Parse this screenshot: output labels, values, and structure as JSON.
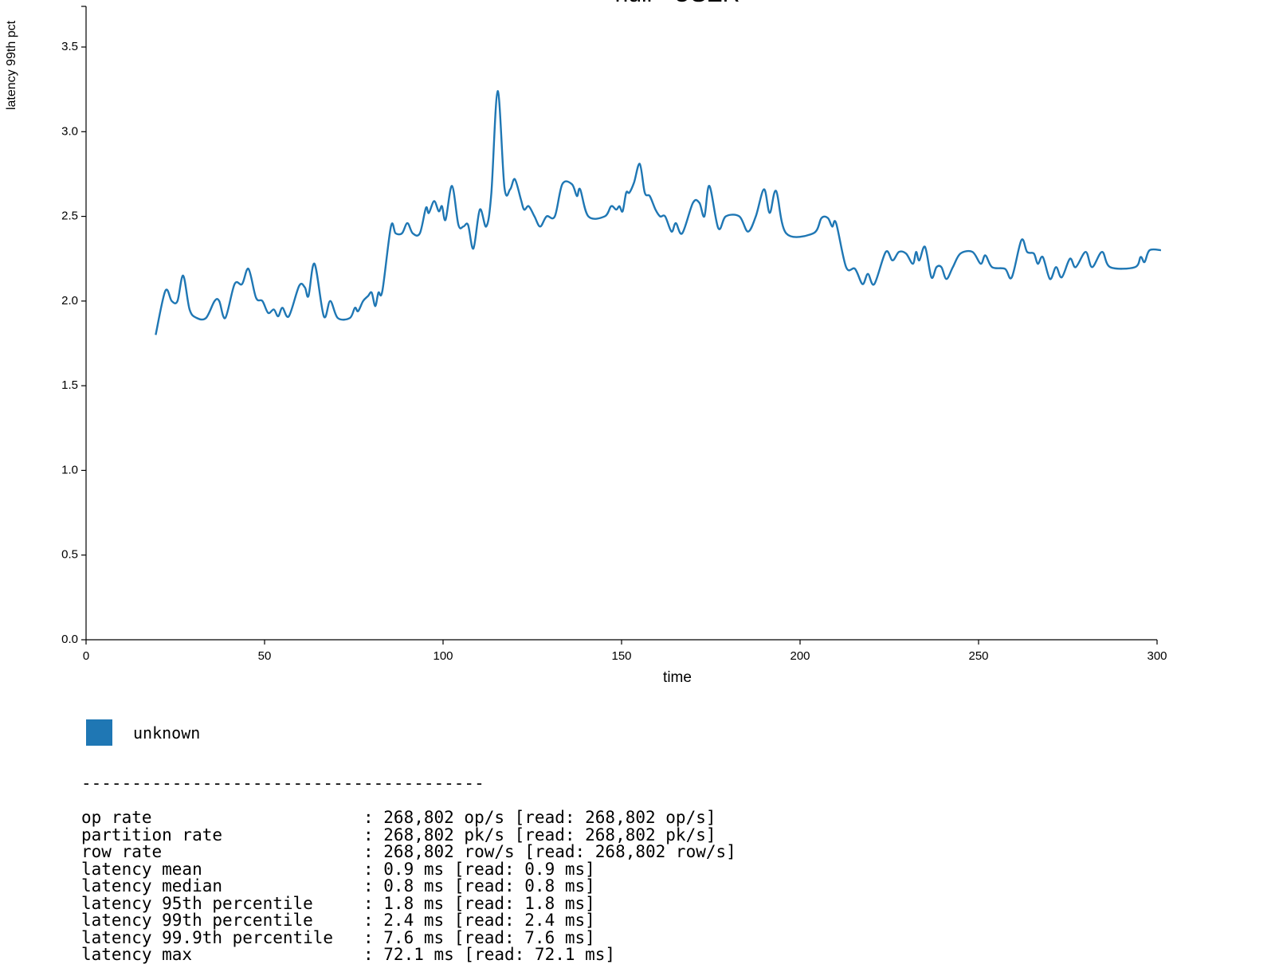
{
  "chart_data": {
    "type": "line",
    "title": "null - USER",
    "x_label": "time",
    "y_label": "latency 99th pct",
    "xlim": [
      0,
      300
    ],
    "xticks": [
      0,
      50,
      100,
      150,
      200,
      250,
      300
    ],
    "ylim": [
      0,
      3.74
    ],
    "yticks": [
      {
        "value": 0,
        "label": "0.0"
      },
      0.5,
      {
        "value": 1,
        "label": "1.0"
      },
      1.5,
      {
        "value": 2,
        "label": "2.0"
      },
      2.5,
      {
        "value": 3,
        "label": "3.0"
      },
      3.5
    ],
    "x": [
      19.5,
      22.2,
      24,
      25.6,
      27.2,
      29,
      31,
      33.6,
      36,
      37.3,
      39,
      41.6,
      43.7,
      45.5,
      47.6,
      49.4,
      51,
      52.6,
      53.8,
      55,
      56.8,
      59.7,
      61.3,
      62.3,
      64,
      66.6,
      68.4,
      70.5,
      73.9,
      75.3,
      76.2,
      77.6,
      79,
      80,
      81,
      81.9,
      83,
      85.4,
      86.7,
      88.5,
      90,
      91.5,
      93.5,
      95.2,
      96,
      97.5,
      98.8,
      99.7,
      100.7,
      102.5,
      104.3,
      105.7,
      107,
      108.5,
      110.3,
      112.1,
      113.5,
      115.3,
      117.2,
      118.8,
      120.1,
      121.8,
      122.7,
      124,
      125.6,
      127.2,
      129,
      131.3,
      133.4,
      136.1,
      137.5,
      138.4,
      140.7,
      145.3,
      147.1,
      148.5,
      149.4,
      150.3,
      151.3,
      152.2,
      153.5,
      155.1,
      156.5,
      157.9,
      159.5,
      160.8,
      162.2,
      164,
      165.2,
      167,
      170,
      171.8,
      173.2,
      174.6,
      177.1,
      179.2,
      183,
      185.4,
      187.6,
      189.9,
      191.5,
      193.3,
      196.1,
      203.7,
      206,
      207.8,
      209,
      210.1,
      212.9,
      215.4,
      217.5,
      219,
      220.8,
      224,
      225.9,
      227.7,
      229.7,
      231.6,
      232.5,
      233.4,
      235,
      236.8,
      238.2,
      239.6,
      241,
      242.8,
      244.9,
      248.3,
      250.6,
      251.9,
      253.8,
      257.4,
      259.3,
      262,
      263.6,
      265.5,
      266.6,
      268,
      270,
      271.7,
      273.3,
      275.6,
      277.2,
      280,
      281.8,
      284.6,
      286.9,
      293.8,
      295.4,
      296.5,
      297.9,
      301.1
    ],
    "series": [
      {
        "name": "unknown",
        "color": "#1f77b4",
        "values": [
          1.8,
          2.06,
          2.0,
          2.0,
          2.15,
          1.95,
          1.9,
          1.9,
          2.0,
          2.0,
          1.9,
          2.1,
          2.1,
          2.19,
          2.02,
          2.0,
          1.93,
          1.95,
          1.91,
          1.96,
          1.91,
          2.09,
          2.08,
          2.03,
          2.22,
          1.91,
          2.0,
          1.9,
          1.9,
          1.96,
          1.94,
          2.0,
          2.03,
          2.05,
          1.97,
          2.05,
          2.06,
          2.44,
          2.4,
          2.4,
          2.46,
          2.4,
          2.4,
          2.55,
          2.52,
          2.59,
          2.53,
          2.56,
          2.48,
          2.68,
          2.45,
          2.44,
          2.45,
          2.31,
          2.54,
          2.44,
          2.63,
          3.24,
          2.67,
          2.66,
          2.72,
          2.6,
          2.54,
          2.56,
          2.5,
          2.44,
          2.5,
          2.5,
          2.69,
          2.69,
          2.62,
          2.66,
          2.5,
          2.5,
          2.56,
          2.54,
          2.56,
          2.53,
          2.64,
          2.64,
          2.7,
          2.81,
          2.64,
          2.62,
          2.54,
          2.5,
          2.5,
          2.41,
          2.46,
          2.4,
          2.58,
          2.58,
          2.5,
          2.68,
          2.43,
          2.5,
          2.5,
          2.41,
          2.5,
          2.66,
          2.52,
          2.65,
          2.4,
          2.4,
          2.49,
          2.49,
          2.44,
          2.46,
          2.2,
          2.19,
          2.1,
          2.16,
          2.1,
          2.29,
          2.24,
          2.29,
          2.28,
          2.22,
          2.29,
          2.24,
          2.32,
          2.14,
          2.2,
          2.2,
          2.13,
          2.2,
          2.28,
          2.29,
          2.22,
          2.27,
          2.2,
          2.19,
          2.14,
          2.36,
          2.29,
          2.28,
          2.22,
          2.26,
          2.13,
          2.2,
          2.14,
          2.25,
          2.2,
          2.29,
          2.2,
          2.29,
          2.2,
          2.2,
          2.26,
          2.23,
          2.3,
          2.3
        ]
      }
    ]
  },
  "stats": {
    "separator": "----------------------------------------",
    "rows": [
      {
        "label": "op rate",
        "value": ": 268,802 op/s [read: 268,802 op/s]"
      },
      {
        "label": "partition rate",
        "value": ": 268,802 pk/s [read: 268,802 pk/s]"
      },
      {
        "label": "row rate",
        "value": ": 268,802 row/s [read: 268,802 row/s]"
      },
      {
        "label": "latency mean",
        "value": ": 0.9 ms [read: 0.9 ms]"
      },
      {
        "label": "latency median",
        "value": ": 0.8 ms [read: 0.8 ms]"
      },
      {
        "label": "latency 95th percentile",
        "value": ": 1.8 ms [read: 1.8 ms]"
      },
      {
        "label": "latency 99th percentile",
        "value": ": 2.4 ms [read: 2.4 ms]"
      },
      {
        "label": "latency 99.9th percentile",
        "value": ": 7.6 ms [read: 7.6 ms]"
      },
      {
        "label": "latency max",
        "value": ": 72.1 ms [read: 72.1 ms]"
      }
    ]
  }
}
